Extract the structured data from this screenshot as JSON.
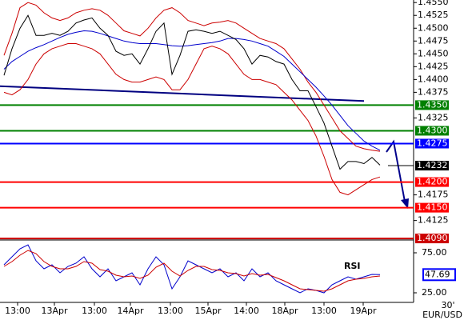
{
  "chart_data": [
    {
      "type": "line",
      "symbol": "EUR/USD",
      "timeframe": "30'",
      "x": [
        0,
        1,
        2,
        3,
        4,
        5,
        6,
        7,
        8,
        9,
        10,
        11,
        12,
        13,
        14,
        15,
        16,
        17,
        18,
        19,
        20,
        21,
        22,
        23,
        24,
        25,
        26,
        27,
        28,
        29,
        30,
        31,
        32,
        33,
        34,
        35,
        36,
        37,
        38,
        39,
        40,
        41,
        42,
        43,
        44,
        45,
        46,
        47
      ],
      "xlim": [
        -0.5,
        51.2
      ],
      "xticks": [
        {
          "value": 1.7,
          "label": "13:00"
        },
        {
          "value": 6.3,
          "label": "13Apr"
        },
        {
          "value": 11.3,
          "label": "13:00"
        },
        {
          "value": 15.8,
          "label": "14Apr"
        },
        {
          "value": 20.8,
          "label": "13:00"
        },
        {
          "value": 25.5,
          "label": "15Apr"
        },
        {
          "value": 30.3,
          "label": "14:00"
        },
        {
          "value": 35.1,
          "label": "18Apr"
        },
        {
          "value": 40,
          "label": "13:00"
        },
        {
          "value": 44.9,
          "label": "19Apr"
        }
      ],
      "ylim": [
        1.4087,
        1.4555
      ],
      "yticks": [
        {
          "value": 1.455,
          "label": "1.4550"
        },
        {
          "value": 1.4525,
          "label": "1.4525"
        },
        {
          "value": 1.45,
          "label": "1.4500"
        },
        {
          "value": 1.4475,
          "label": "1.4475"
        },
        {
          "value": 1.445,
          "label": "1.4450"
        },
        {
          "value": 1.4425,
          "label": "1.4425"
        },
        {
          "value": 1.44,
          "label": "1.4400"
        },
        {
          "value": 1.4375,
          "label": "1.4375"
        },
        {
          "value": 1.4325,
          "label": "1.4325"
        },
        {
          "value": 1.4175,
          "label": "1.4175"
        },
        {
          "value": 1.4125,
          "label": "1.4125"
        }
      ],
      "series": [
        {
          "color": "#cc0000",
          "values": [
            1.4447,
            1.449,
            1.454,
            1.455,
            1.4545,
            1.453,
            1.452,
            1.4515,
            1.452,
            1.453,
            1.4535,
            1.4538,
            1.4535,
            1.4525,
            1.451,
            1.4495,
            1.449,
            1.4485,
            1.45,
            1.452,
            1.4535,
            1.454,
            1.453,
            1.4515,
            1.451,
            1.4505,
            1.451,
            1.4512,
            1.4515,
            1.451,
            1.45,
            1.449,
            1.448,
            1.4475,
            1.447,
            1.446,
            1.444,
            1.442,
            1.4395,
            1.4375,
            1.435,
            1.4325,
            1.43,
            1.4285,
            1.427,
            1.4265,
            1.4262,
            1.426
          ]
        },
        {
          "color": "#cc0000",
          "values": [
            1.4375,
            1.437,
            1.438,
            1.44,
            1.443,
            1.445,
            1.446,
            1.4465,
            1.447,
            1.447,
            1.4465,
            1.446,
            1.445,
            1.443,
            1.441,
            1.44,
            1.4395,
            1.4395,
            1.44,
            1.4405,
            1.44,
            1.438,
            1.438,
            1.44,
            1.443,
            1.446,
            1.4465,
            1.446,
            1.445,
            1.443,
            1.441,
            1.44,
            1.44,
            1.4395,
            1.439,
            1.4375,
            1.436,
            1.434,
            1.432,
            1.429,
            1.425,
            1.4205,
            1.418,
            1.4175,
            1.4185,
            1.4195,
            1.4205,
            1.421
          ]
        },
        {
          "color": "#0000cc",
          "values": [
            1.442,
            1.4435,
            1.4445,
            1.4455,
            1.4462,
            1.4468,
            1.4475,
            1.4482,
            1.4488,
            1.4492,
            1.4495,
            1.4494,
            1.449,
            1.4485,
            1.448,
            1.4475,
            1.4472,
            1.447,
            1.447,
            1.447,
            1.4468,
            1.4466,
            1.4465,
            1.4466,
            1.4468,
            1.447,
            1.4472,
            1.4475,
            1.448,
            1.448,
            1.4478,
            1.4475,
            1.447,
            1.4465,
            1.4455,
            1.4445,
            1.443,
            1.4415,
            1.44,
            1.4385,
            1.4368,
            1.435,
            1.433,
            1.431,
            1.4295,
            1.428,
            1.427,
            1.4262
          ]
        },
        {
          "color": "#000000",
          "values": [
            1.4408,
            1.446,
            1.45,
            1.4525,
            1.4486,
            1.4486,
            1.449,
            1.4486,
            1.4494,
            1.451,
            1.4516,
            1.452,
            1.45,
            1.4486,
            1.4455,
            1.4447,
            1.445,
            1.443,
            1.446,
            1.4494,
            1.451,
            1.441,
            1.4447,
            1.4494,
            1.4497,
            1.4494,
            1.449,
            1.4494,
            1.4486,
            1.4478,
            1.446,
            1.443,
            1.4447,
            1.4444,
            1.4435,
            1.443,
            1.44,
            1.4378,
            1.4378,
            1.4347,
            1.4315,
            1.427,
            1.4225,
            1.424,
            1.424,
            1.4236,
            1.4248,
            1.4233
          ]
        }
      ],
      "trendline": {
        "color": "#000080",
        "x": [
          -0.5,
          45
        ],
        "values": [
          1.4387,
          1.4358
        ]
      },
      "levels": [
        {
          "value": 1.435,
          "label": "1.4350",
          "color": "#008000"
        },
        {
          "value": 1.43,
          "label": "1.4300",
          "color": "#008000"
        },
        {
          "value": 1.4275,
          "label": "1.4275",
          "color": "#0000ff"
        },
        {
          "value": 1.42,
          "label": "1.4200",
          "color": "#ff0000"
        },
        {
          "value": 1.415,
          "label": "1.4150",
          "color": "#ff0000"
        },
        {
          "value": 1.409,
          "label": "1.4090",
          "color": "#cc0000"
        }
      ],
      "last_price": {
        "value": 1.4232,
        "label": "1.4232",
        "color": "#000000"
      }
    },
    {
      "type": "line",
      "title": "RSI",
      "ylim": [
        13,
        91
      ],
      "yticks": [
        {
          "value": 75,
          "label": "75.00"
        },
        {
          "value": 25,
          "label": "25.00"
        }
      ],
      "series": [
        {
          "color": "#0000cc",
          "values": [
            60,
            70,
            80,
            85,
            65,
            55,
            60,
            50,
            58,
            62,
            70,
            55,
            45,
            55,
            40,
            45,
            50,
            35,
            55,
            70,
            60,
            30,
            45,
            65,
            60,
            55,
            50,
            55,
            45,
            50,
            40,
            55,
            45,
            50,
            40,
            35,
            30,
            25,
            30,
            28,
            25,
            35,
            40,
            45,
            42,
            45,
            48,
            47.69
          ]
        },
        {
          "color": "#cc0000",
          "values": [
            58,
            64,
            72,
            78,
            74,
            64,
            58,
            55,
            55,
            58,
            64,
            62,
            54,
            52,
            47,
            45,
            46,
            43,
            47,
            57,
            62,
            52,
            46,
            53,
            58,
            58,
            54,
            53,
            50,
            49,
            46,
            49,
            47,
            48,
            44,
            40,
            35,
            30,
            29,
            28,
            27,
            30,
            35,
            40,
            42,
            43,
            45,
            46
          ]
        }
      ],
      "last_value": {
        "value": 47.69,
        "label": "47.69",
        "color": "#0000ff"
      }
    }
  ]
}
